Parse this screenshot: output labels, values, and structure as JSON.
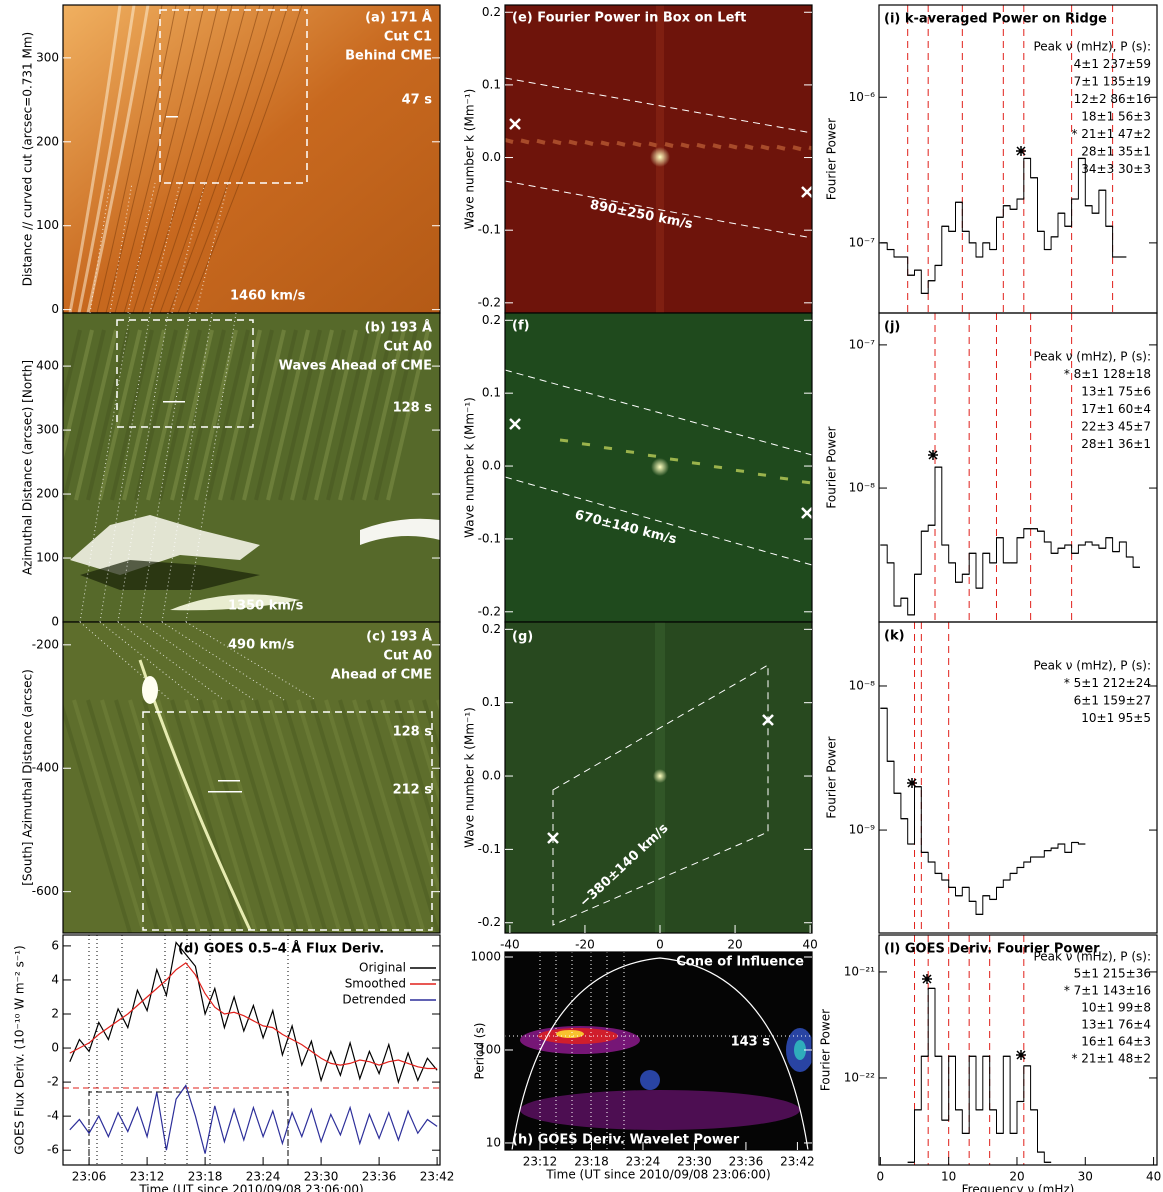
{
  "chart_data": [
    {
      "type": "image",
      "color": "#c8691f",
      "ylim": [
        -4,
        363
      ],
      "yticks": [
        0,
        100,
        200,
        300
      ],
      "ylabel": "Distance // curved cut (arcsec=0.731 Mm)",
      "annotations": [
        "(a) 171 Å",
        "Cut C1",
        "Behind CME",
        "47 s",
        "1460 km/s"
      ]
    },
    {
      "type": "image",
      "color": "#56692a",
      "ylim": [
        0,
        483
      ],
      "yticks": [
        0,
        100,
        200,
        300,
        400
      ],
      "ylabel": "Azimuthal Distance (arcsec)   [North]",
      "annotations": [
        "(b) 193 Å",
        "Cut A0",
        "Waves Ahead of CME",
        "128 s",
        "1350 km/s"
      ]
    },
    {
      "type": "image",
      "color": "#5e6e2c",
      "ylim": [
        -667,
        -163
      ],
      "yticks": [
        -600,
        -400,
        -200
      ],
      "ylabel": "[South]   Azimuthal Distance (arcsec)",
      "annotations": [
        "490 km/s",
        "(c) 193 Å",
        "Cut A0",
        "Ahead of CME",
        "128 s",
        "212 s"
      ]
    },
    {
      "type": "line",
      "title": "(d) GOES 0.5–4 Å Flux Deriv.",
      "xlim": [
        -2.7,
        36.3
      ],
      "ylim": [
        -6.87,
        6.64
      ],
      "xticks": [
        {
          "value": 0,
          "label": "23:06"
        },
        {
          "value": 6,
          "label": "23:12"
        },
        {
          "value": 12,
          "label": "23:18"
        },
        {
          "value": 18,
          "label": "23:24"
        },
        {
          "value": 24,
          "label": "23:30"
        },
        {
          "value": 30,
          "label": "23:36"
        },
        {
          "value": 36,
          "label": "23:42"
        }
      ],
      "yticks": [
        -6,
        -4,
        -2,
        0,
        2,
        4,
        6
      ],
      "xlabel": "Time (UT since 2010/09/08 23:06:00)",
      "ylabel": "GOES Flux Deriv. (10⁻¹⁰ W m⁻² s⁻¹)",
      "x": [
        -2,
        -1,
        0,
        1,
        2,
        3,
        4,
        5,
        6,
        7,
        8,
        9,
        10,
        11,
        12,
        13,
        14,
        15,
        16,
        17,
        18,
        19,
        20,
        21,
        22,
        23,
        24,
        25,
        26,
        27,
        28,
        29,
        30,
        31,
        32,
        33,
        34,
        35,
        36
      ],
      "series": [
        {
          "name": "Original",
          "color": "#000000",
          "values": [
            -0.8,
            0.5,
            -0.2,
            1.5,
            0.5,
            2.3,
            1.2,
            3.4,
            2.2,
            4.6,
            3.1,
            6.2,
            5.5,
            4.8,
            2.0,
            3.5,
            1.2,
            3.0,
            1.0,
            2.5,
            0.6,
            2.2,
            -0.4,
            1.3,
            -1.0,
            0.4,
            -1.9,
            -0.2,
            -1.6,
            0.3,
            -1.8,
            -0.2,
            -1.5,
            0.2,
            -2.0,
            -0.3,
            -1.9,
            -0.6,
            -1.3
          ]
        },
        {
          "name": "Smoothed",
          "color": "#e0201b",
          "values": [
            -0.3,
            0,
            0.3,
            0.8,
            1.2,
            1.6,
            2.0,
            2.5,
            3.0,
            3.5,
            4.0,
            4.6,
            5.0,
            4.3,
            3.2,
            2.4,
            2.0,
            2.1,
            1.9,
            1.6,
            1.3,
            1.2,
            0.8,
            0.5,
            0.2,
            -0.2,
            -0.6,
            -0.9,
            -1.0,
            -0.9,
            -0.7,
            -0.8,
            -1.0,
            -0.8,
            -0.7,
            -0.9,
            -1.1,
            -1.2,
            -1.2
          ]
        },
        {
          "name": "Detrended",
          "color": "#2d2f9a",
          "values": [
            -4.8,
            -4.2,
            -5.0,
            -4.0,
            -5.2,
            -3.8,
            -4.9,
            -3.5,
            -5.2,
            -2.6,
            -6.0,
            -3.0,
            -2.2,
            -4.0,
            -6.2,
            -3.4,
            -5.5,
            -3.6,
            -5.4,
            -3.5,
            -5.2,
            -3.7,
            -5.6,
            -3.8,
            -5.2,
            -3.6,
            -5.5,
            -3.9,
            -5.1,
            -3.5,
            -5.6,
            -3.9,
            -5.3,
            -3.8,
            -5.4,
            -3.7,
            -5.0,
            -4.2,
            -4.6
          ]
        }
      ]
    },
    {
      "type": "image",
      "color": "#6e140b",
      "xlim": [
        -41.3,
        40.5
      ],
      "ylim": [
        -0.214,
        0.21
      ],
      "yticks": [
        -0.2,
        -0.1,
        {
          "value": 0,
          "label": "0.0"
        },
        0.1,
        0.2
      ],
      "ylabel": "Wave number k (Mm⁻¹)",
      "annotations": [
        "(e) Fourier Power in Box on Left",
        "890±250 km/s"
      ]
    },
    {
      "type": "image",
      "color": "#1f4a1d",
      "xlim": [
        -41.3,
        40.5
      ],
      "ylim": [
        -0.214,
        0.21
      ],
      "yticks": [
        -0.2,
        -0.1,
        {
          "value": 0,
          "label": "0.0"
        },
        0.1,
        0.2
      ],
      "ylabel": "Wave number k (Mm⁻¹)",
      "annotations": [
        "(f)",
        "670±140 km/s"
      ]
    },
    {
      "type": "image",
      "color": "#28491f",
      "xlim": [
        -41.3,
        40.5
      ],
      "ylim": [
        -0.214,
        0.21
      ],
      "xticks": [
        -40,
        -20,
        0,
        20,
        40
      ],
      "yticks": [
        -0.2,
        -0.1,
        {
          "value": 0,
          "label": "0.0"
        },
        0.1,
        0.2
      ],
      "xlabel": "Frequency ν (mHz)",
      "ylabel": "Wave number k (Mm⁻¹)",
      "annotations": [
        "(g)",
        "−380±140 km/s"
      ]
    },
    {
      "type": "image",
      "color": "#050505",
      "log_y": true,
      "xlim": [
        1.92,
        37.7
      ],
      "ylim": [
        8.4,
        1132
      ],
      "xticks": [
        {
          "value": 6,
          "label": "23:12"
        },
        {
          "value": 12,
          "label": "23:18"
        },
        {
          "value": 18,
          "label": "23:24"
        },
        {
          "value": 24,
          "label": "23:30"
        },
        {
          "value": 30,
          "label": "23:36"
        },
        {
          "value": 36,
          "label": "23:42"
        }
      ],
      "yticks": [
        10,
        100,
        1000
      ],
      "xlabel": "Time (UT since 2010/09/08 23:06:00)",
      "ylabel": "Period (s)",
      "annotations": [
        "(h) GOES Deriv. Wavelet Power",
        "Cone of Influence",
        "143 s"
      ]
    },
    {
      "type": "step",
      "log_y": true,
      "color": "#000000",
      "xlim": [
        -0.2,
        40.5
      ],
      "ylim": [
        3.3e-08,
        4.3e-06
      ],
      "yticks": [
        {
          "value": 1e-07,
          "label": "10⁻⁷"
        },
        {
          "value": 1e-06,
          "label": "10⁻⁶"
        }
      ],
      "ylabel": "Fourier Power",
      "title": "(i) k-averaged Power on Ridge",
      "peak_header": "Peak ν (mHz), P (s):",
      "peak_rows": [
        "4±1 237±59",
        "7±1 135±19",
        "12±2 86±16",
        "18±1 56±3",
        "* 21±1 47±2",
        "28±1 35±1",
        "34±3 30±3"
      ],
      "peak_lines": [
        4,
        7,
        12,
        18,
        21,
        28,
        34
      ],
      "x": [
        0,
        1,
        2,
        3,
        4,
        5,
        6,
        7,
        8,
        9,
        10,
        11,
        12,
        13,
        14,
        15,
        16,
        17,
        18,
        19,
        20,
        21,
        22,
        23,
        24,
        25,
        26,
        27,
        28,
        29,
        30,
        31,
        32,
        33,
        34,
        35
      ],
      "values": [
        1e-07,
        9e-08,
        8e-08,
        8e-08,
        6e-08,
        6.5e-08,
        4.5e-08,
        5.5e-08,
        7e-08,
        1.3e-07,
        1.2e-07,
        1.9e-07,
        1.2e-07,
        1e-07,
        8e-08,
        1e-07,
        9e-08,
        1.5e-07,
        1.8e-07,
        1.7e-07,
        2e-07,
        3.8e-07,
        2.8e-07,
        1.2e-07,
        9e-08,
        1.1e-07,
        1.6e-07,
        1.3e-07,
        2e-07,
        3.8e-07,
        1.8e-07,
        1.6e-07,
        2.3e-07,
        1.3e-07,
        8e-08,
        8e-08
      ]
    },
    {
      "type": "step",
      "log_y": true,
      "color": "#000000",
      "xlim": [
        -0.2,
        40.5
      ],
      "ylim": [
        1.16e-09,
        1.67e-07
      ],
      "yticks": [
        {
          "value": 1e-08,
          "label": "10⁻⁸"
        },
        {
          "value": 1e-07,
          "label": "10⁻⁷"
        }
      ],
      "ylabel": "Fourier Power",
      "title": "(j)",
      "peak_header": "Peak ν (mHz), P (s):",
      "peak_rows": [
        "* 8±1 128±18",
        "13±1 75±6",
        "17±1 60±4",
        "22±3 45±7",
        "28±1 36±1"
      ],
      "peak_lines": [
        8,
        13,
        17,
        22,
        28
      ],
      "x": [
        0,
        1,
        2,
        3,
        4,
        5,
        6,
        7,
        8,
        9,
        10,
        11,
        12,
        13,
        14,
        15,
        16,
        17,
        18,
        19,
        20,
        21,
        22,
        23,
        24,
        25,
        26,
        27,
        28,
        29,
        30,
        31,
        32,
        33,
        34,
        35,
        36,
        37
      ],
      "values": [
        4e-09,
        3e-09,
        1.5e-09,
        1.7e-09,
        1.3e-09,
        2.5e-09,
        5e-09,
        5.5e-09,
        1.4e-08,
        4e-09,
        3e-09,
        2.2e-09,
        2.5e-09,
        3.5e-09,
        2e-09,
        3.5e-09,
        3e-09,
        4.5e-09,
        3e-09,
        3e-09,
        4.5e-09,
        5.2e-09,
        5.2e-09,
        5e-09,
        4.2e-09,
        3.5e-09,
        3.8e-09,
        4e-09,
        3.5e-09,
        4e-09,
        4.2e-09,
        4e-09,
        3.8e-09,
        4.5e-09,
        3.6e-09,
        4.2e-09,
        3.3e-09,
        2.8e-09
      ]
    },
    {
      "type": "step",
      "log_y": true,
      "color": "#000000",
      "xlim": [
        -0.2,
        40.5
      ],
      "ylim": [
        1.93e-10,
        2.78e-08
      ],
      "yticks": [
        {
          "value": 1e-09,
          "label": "10⁻⁹"
        },
        {
          "value": 1e-08,
          "label": "10⁻⁸"
        }
      ],
      "ylabel": "Fourier Power",
      "title": "(k)",
      "peak_header": "Peak ν (mHz), P (s):",
      "peak_rows": [
        "* 5±1 212±24",
        "6±1 159±27",
        "10±1 95±5"
      ],
      "peak_lines": [
        5,
        6,
        10
      ],
      "x": [
        0,
        1,
        2,
        3,
        4,
        5,
        6,
        7,
        8,
        9,
        10,
        11,
        12,
        13,
        14,
        15,
        16,
        17,
        18,
        19,
        20,
        21,
        22,
        23,
        24,
        25,
        26,
        27,
        28,
        29
      ],
      "values": [
        7e-09,
        3e-09,
        1.8e-09,
        1.2e-09,
        8e-10,
        2e-09,
        7e-10,
        6e-10,
        5e-10,
        4.5e-10,
        4e-10,
        3.5e-10,
        4e-10,
        3.2e-10,
        2.6e-10,
        3.5e-10,
        3.3e-10,
        4e-10,
        4.5e-10,
        5e-10,
        5.5e-10,
        6e-10,
        6.5e-10,
        6.5e-10,
        7.2e-10,
        7.5e-10,
        8e-10,
        7e-10,
        8.2e-10,
        8e-10
      ]
    },
    {
      "type": "step",
      "log_y": true,
      "color": "#000000",
      "xlim": [
        -0.2,
        40.5
      ],
      "ylim": [
        1.51e-23,
        2.23e-21
      ],
      "xticks": [
        0,
        10,
        20,
        30,
        40
      ],
      "yticks": [
        {
          "value": 1e-22,
          "label": "10⁻²²"
        },
        {
          "value": 1e-21,
          "label": "10⁻²¹"
        }
      ],
      "xlabel": "Frequency ν (mHz)",
      "ylabel": "Fourier Power",
      "title": "(l) GOES Deriv. Fourier Power",
      "peak_header": "Peak ν (mHz), P (s):",
      "peak_rows": [
        "5±1 215±36",
        "* 7±1 143±16",
        "10±1 99±8",
        "13±1 76±4",
        "16±1 64±3",
        "* 21±1 48±2"
      ],
      "peak_lines": [
        5,
        7,
        10,
        13,
        16,
        21
      ],
      "x": [
        4,
        5,
        6,
        7,
        8,
        9,
        10,
        11,
        12,
        13,
        14,
        15,
        16,
        17,
        18,
        19,
        20,
        21,
        22,
        23,
        24
      ],
      "values": [
        1.6e-23,
        5e-23,
        1.6e-22,
        7e-22,
        1.6e-22,
        4e-23,
        1.6e-22,
        5e-23,
        3e-23,
        1.6e-22,
        5e-23,
        1.6e-22,
        5e-23,
        3e-23,
        1.6e-22,
        3e-23,
        6e-23,
        1.3e-22,
        5e-23,
        2e-23,
        1.6e-23
      ]
    }
  ]
}
